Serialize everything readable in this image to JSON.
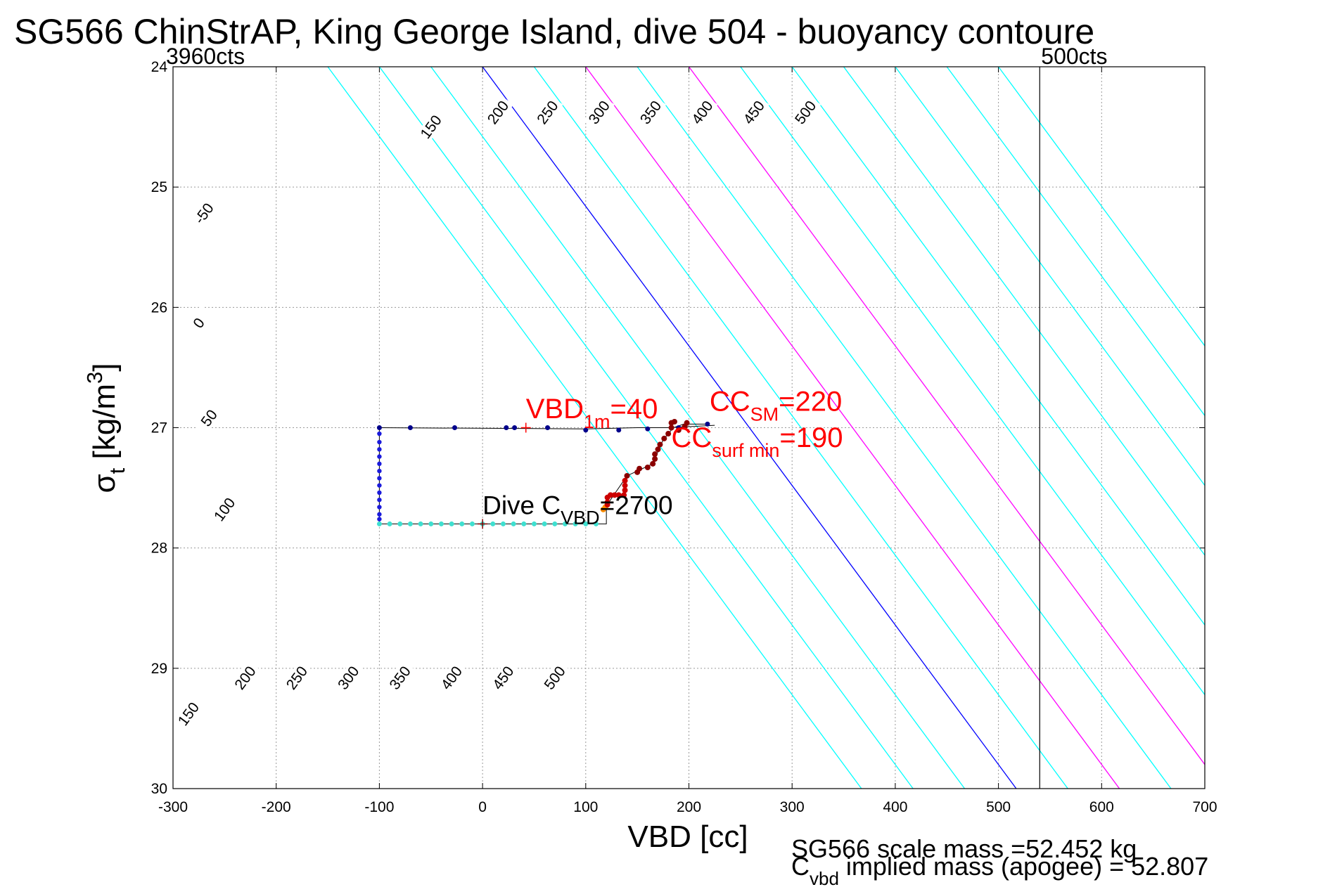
{
  "chart_data": {
    "type": "scatter",
    "title": "SG566 ChinStrAP, King George Island, dive 504 - buoyancy contoure",
    "xlabel": "VBD [cc]",
    "ylabel_main": "σ",
    "ylabel_sub": "t",
    "ylabel_unit_start": " [kg/m",
    "ylabel_unit_sup": "3",
    "ylabel_unit_end": "]",
    "xlim": [
      -300,
      700
    ],
    "ylim": [
      24,
      30
    ],
    "y_reversed": true,
    "x_ticks": [
      "-300",
      "-200",
      "-100",
      "0",
      "100",
      "200",
      "300",
      "400",
      "500",
      "600",
      "700"
    ],
    "y_ticks": [
      "24",
      "25",
      "26",
      "27",
      "28",
      "29",
      "30"
    ],
    "grid": true,
    "counts_left": "3960cts",
    "counts_right": "500cts",
    "counts_right_vbd": 540,
    "contours": [
      {
        "value": -50,
        "label": "-50",
        "color": "#00ffff"
      },
      {
        "value": 0,
        "label": "0",
        "color": "#0000ff"
      },
      {
        "value": 50,
        "label": "50",
        "color": "#00ffff"
      },
      {
        "value": 100,
        "label": "100",
        "color": "#ff00ff"
      },
      {
        "value": 150,
        "label": "150",
        "color": "#00ffff"
      },
      {
        "value": 200,
        "label": "200",
        "color": "#ff00ff"
      },
      {
        "value": 250,
        "label": "250",
        "color": "#00ffff"
      },
      {
        "value": 300,
        "label": "300",
        "color": "#00ffff"
      },
      {
        "value": 350,
        "label": "350",
        "color": "#00ffff"
      },
      {
        "value": 400,
        "label": "400",
        "color": "#00ffff"
      },
      {
        "value": 450,
        "label": "450",
        "color": "#00ffff"
      },
      {
        "value": 500,
        "label": "500",
        "color": "#00ffff"
      }
    ],
    "extra_lines": [
      {
        "offset": -100,
        "color": "#00ffff"
      },
      {
        "offset": -150,
        "color": "#00ffff"
      }
    ],
    "contour_label_positions_top": [
      {
        "label": "150",
        "x": -50,
        "y": 24.5
      },
      {
        "label": "200",
        "x": 15,
        "y": 24.38
      },
      {
        "label": "250",
        "x": 63,
        "y": 24.38
      },
      {
        "label": "300",
        "x": 113,
        "y": 24.38
      },
      {
        "label": "350",
        "x": 163,
        "y": 24.38
      },
      {
        "label": "400",
        "x": 213,
        "y": 24.38
      },
      {
        "label": "450",
        "x": 263,
        "y": 24.38
      },
      {
        "label": "500",
        "x": 313,
        "y": 24.38
      }
    ],
    "contour_label_positions_left": [
      {
        "label": "-50",
        "x": -270,
        "y": 25.22
      },
      {
        "label": "0",
        "x": -275,
        "y": 26.13
      },
      {
        "label": "50",
        "x": -265,
        "y": 26.92
      },
      {
        "label": "100",
        "x": -250,
        "y": 27.68
      }
    ],
    "contour_label_positions_bottom": [
      {
        "label": "150",
        "x": -285,
        "y": 29.38
      },
      {
        "label": "200",
        "x": -230,
        "y": 29.08
      },
      {
        "label": "250",
        "x": -180,
        "y": 29.08
      },
      {
        "label": "300",
        "x": -130,
        "y": 29.08
      },
      {
        "label": "350",
        "x": -80,
        "y": 29.08
      },
      {
        "label": "400",
        "x": -30,
        "y": 29.08
      },
      {
        "label": "450",
        "x": 20,
        "y": 29.08
      },
      {
        "label": "500",
        "x": 70,
        "y": 29.08
      }
    ],
    "dive_path": {
      "color": "#000000",
      "points": [
        [
          -100,
          27.0
        ],
        [
          -100,
          27.8
        ],
        [
          120,
          27.8
        ],
        [
          120,
          27.65
        ],
        [
          140,
          27.4
        ],
        [
          165,
          27.3
        ],
        [
          175,
          27.1
        ],
        [
          185,
          27.0
        ],
        [
          195,
          26.97
        ],
        [
          220,
          26.97
        ]
      ]
    },
    "surface_path": {
      "color": "#000000",
      "points": [
        [
          -100,
          27.0
        ],
        [
          100,
          27.01
        ],
        [
          150,
          27.0
        ],
        [
          180,
          27.0
        ],
        [
          225,
          26.98
        ]
      ]
    },
    "series": [
      {
        "role": "descent",
        "color": "#00008b",
        "radius": 3.5,
        "points": [
          [
            -100,
            27.0
          ],
          [
            -70,
            27.0
          ],
          [
            -27,
            27.0
          ],
          [
            23,
            27.0
          ],
          [
            31,
            27.0
          ],
          [
            63,
            27.0
          ],
          [
            100,
            27.02
          ],
          [
            132,
            27.02
          ],
          [
            160,
            27.01
          ],
          [
            190,
            27.0
          ],
          [
            218,
            26.97
          ]
        ]
      },
      {
        "role": "descent-column",
        "color": "#1a1adc",
        "radius": 3.2,
        "points": [
          [
            -100,
            27.05
          ],
          [
            -100,
            27.12
          ],
          [
            -100,
            27.18
          ],
          [
            -100,
            27.24
          ],
          [
            -100,
            27.3
          ],
          [
            -100,
            27.36
          ],
          [
            -100,
            27.42
          ],
          [
            -100,
            27.48
          ],
          [
            -100,
            27.54
          ],
          [
            -100,
            27.6
          ],
          [
            -100,
            27.66
          ],
          [
            -100,
            27.72
          ],
          [
            -100,
            27.76
          ]
        ]
      },
      {
        "role": "bottom",
        "color": "#3fe0d0",
        "radius": 3.5,
        "points": [
          [
            -100,
            27.8
          ],
          [
            -90,
            27.8
          ],
          [
            -80,
            27.8
          ],
          [
            -70,
            27.8
          ],
          [
            -60,
            27.8
          ],
          [
            -50,
            27.8
          ],
          [
            -40,
            27.8
          ],
          [
            -30,
            27.8
          ],
          [
            -20,
            27.8
          ],
          [
            -10,
            27.8
          ],
          [
            0,
            27.8
          ],
          [
            10,
            27.8
          ],
          [
            20,
            27.8
          ],
          [
            30,
            27.8
          ],
          [
            40,
            27.8
          ],
          [
            50,
            27.8
          ],
          [
            60,
            27.8
          ],
          [
            70,
            27.8
          ],
          [
            80,
            27.8
          ],
          [
            90,
            27.8
          ],
          [
            100,
            27.8
          ],
          [
            110,
            27.8
          ]
        ]
      },
      {
        "role": "ascent-orange",
        "color": "#ff8c00",
        "radius": 4,
        "points": [
          [
            117,
            27.68
          ],
          [
            119,
            27.66
          ]
        ]
      },
      {
        "role": "ascent-red",
        "color": "#cc0000",
        "radius": 4,
        "points": [
          [
            121,
            27.58
          ],
          [
            121,
            27.62
          ],
          [
            121,
            27.64
          ],
          [
            124,
            27.56
          ],
          [
            128,
            27.56
          ],
          [
            132,
            27.56
          ],
          [
            137,
            27.56
          ],
          [
            138,
            27.52
          ],
          [
            138,
            27.48
          ],
          [
            138,
            27.44
          ]
        ]
      },
      {
        "role": "ascent-darkred",
        "color": "#8b0000",
        "radius": 4,
        "points": [
          [
            140,
            27.4
          ],
          [
            150,
            27.37
          ],
          [
            152,
            27.34
          ],
          [
            160,
            27.33
          ],
          [
            165,
            27.3
          ],
          [
            167,
            27.26
          ],
          [
            167,
            27.22
          ],
          [
            170,
            27.18
          ],
          [
            172,
            27.14
          ],
          [
            176,
            27.09
          ],
          [
            180,
            27.05
          ],
          [
            183,
            27.0
          ],
          [
            183,
            26.96
          ],
          [
            186,
            26.95
          ],
          [
            190,
            27.02
          ],
          [
            196,
            26.99
          ],
          [
            198,
            26.96
          ]
        ]
      }
    ],
    "markers": [
      {
        "label": "VBD 1m",
        "x": 42,
        "y": 27.0,
        "color": "#ff0000"
      },
      {
        "label": "Dive CVBD",
        "x": 0,
        "y": 27.8,
        "color": "#8b0000"
      }
    ],
    "annotations": {
      "vbd1m": {
        "main": "VBD",
        "sub": "1m",
        "value": "=40",
        "x": 42,
        "y": 26.92
      },
      "ccsm": {
        "main": "CC",
        "sub": "SM",
        "value": "=220",
        "x": 220,
        "y": 26.86
      },
      "ccsurf": {
        "main": "CC",
        "sub": "surf min",
        "value": "=190",
        "x": 183,
        "y": 27.16
      },
      "divecvbd": {
        "prefix": "Dive C",
        "sub": "VBD",
        "value": "=2700",
        "x": 0,
        "y": 27.72
      }
    },
    "footer": {
      "line1": "SG566 scale mass =52.452 kg",
      "line2_main": "C",
      "line2_sub": "vbd",
      "line2_rest": " implied mass (apogee) = 52.807"
    }
  }
}
